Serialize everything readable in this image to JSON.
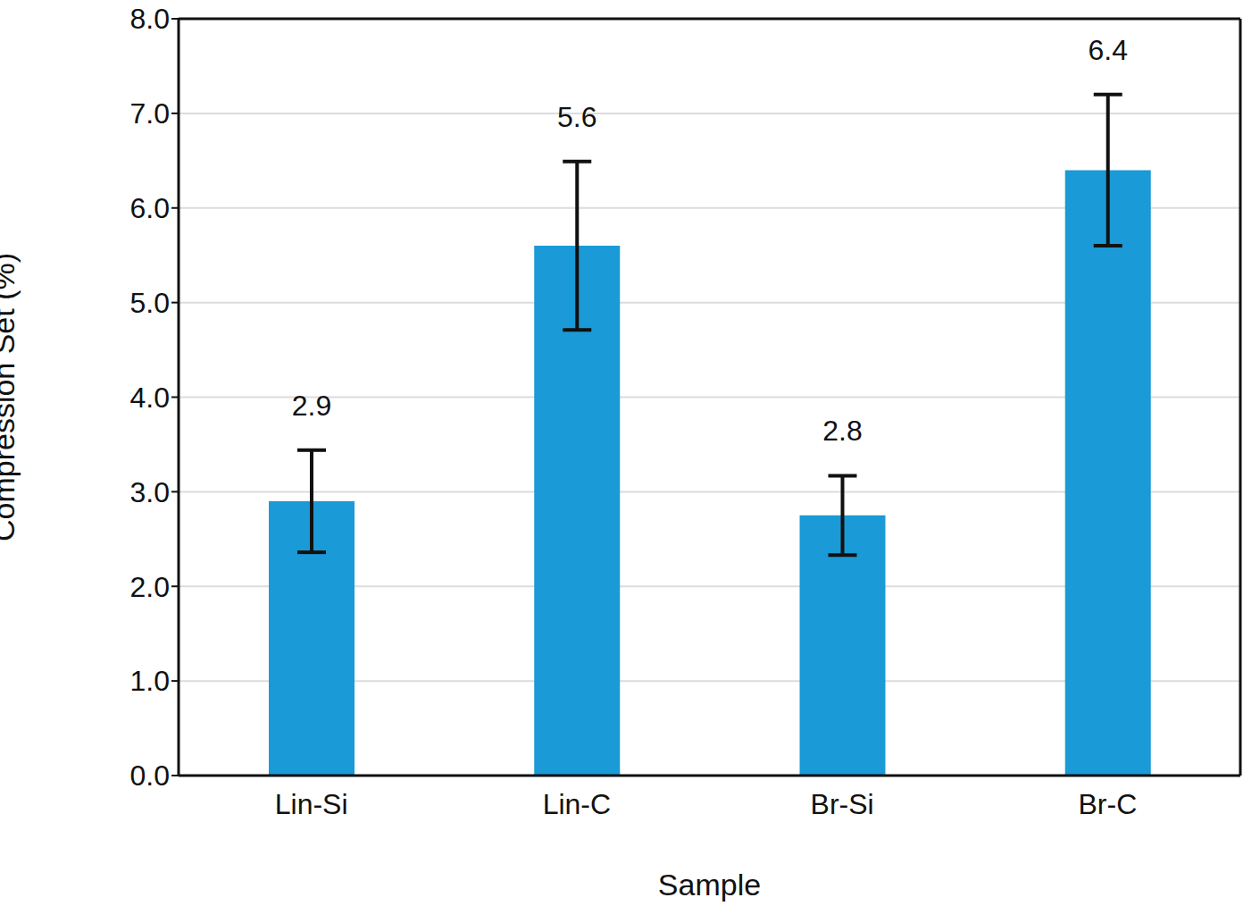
{
  "chart_data": {
    "type": "bar",
    "categories": [
      "Lin-Si",
      "Lin-C",
      "Br-Si",
      "Br-C"
    ],
    "values": [
      2.9,
      5.6,
      2.75,
      6.4
    ],
    "value_labels": [
      "2.9",
      "5.6",
      "2.8",
      "6.4"
    ],
    "errors": [
      0.54,
      0.89,
      0.42,
      0.8
    ],
    "color": "#1a9ad6",
    "x_label": "Sample",
    "y_label": "Compression Set (%)",
    "ylim": [
      0,
      8
    ],
    "yticks": [
      {
        "value": 0,
        "label": "0.0"
      },
      {
        "value": 1,
        "label": "1.0"
      },
      {
        "value": 2,
        "label": "2.0"
      },
      {
        "value": 3,
        "label": "3.0"
      },
      {
        "value": 4,
        "label": "4.0"
      },
      {
        "value": 5,
        "label": "5.0"
      },
      {
        "value": 6,
        "label": "6.0"
      },
      {
        "value": 7,
        "label": "7.0"
      },
      {
        "value": 8,
        "label": "8.0"
      }
    ],
    "grid": true,
    "data_labels": true
  }
}
